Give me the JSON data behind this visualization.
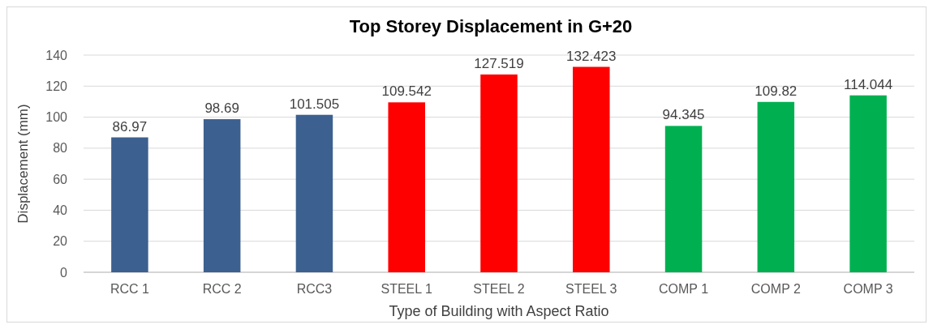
{
  "chart_data": {
    "type": "bar",
    "title": "Top Storey Displacement in G+20",
    "xlabel": "Type of Building with Aspect Ratio",
    "ylabel": "Displacement (mm)",
    "categories": [
      "RCC 1",
      "RCC 2",
      "RCC3",
      "STEEL 1",
      "STEEL 2",
      "STEEL 3",
      "COMP 1",
      "COMP 2",
      "COMP 3"
    ],
    "values": [
      86.97,
      98.69,
      101.505,
      109.542,
      127.519,
      132.423,
      94.345,
      109.82,
      114.044
    ],
    "colors": [
      "#3c6090",
      "#3c6090",
      "#3c6090",
      "#ff0000",
      "#ff0000",
      "#ff0000",
      "#00b050",
      "#00b050",
      "#00b050"
    ],
    "ylim": [
      0,
      140
    ],
    "yticks": [
      0,
      20,
      40,
      60,
      80,
      100,
      120,
      140
    ],
    "grid": "y",
    "data_labels": true
  }
}
